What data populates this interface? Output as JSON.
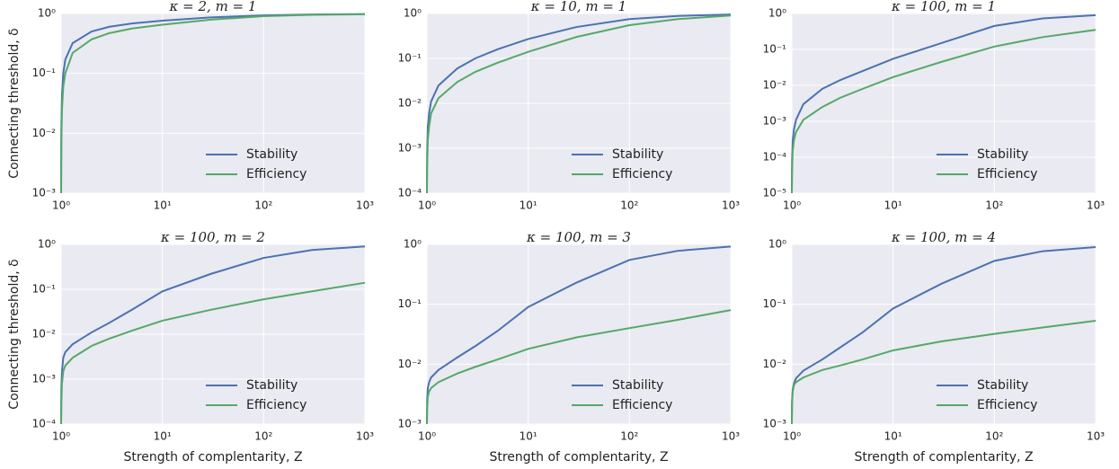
{
  "chart_data": [
    {
      "type": "line",
      "title": "κ = 2, m = 1",
      "ylabel": "Connecting threshold, δ",
      "x": [
        1,
        1.005,
        1.02,
        1.05,
        1.1,
        1.3,
        2,
        3,
        5,
        10,
        30,
        100,
        300,
        1000
      ],
      "series": [
        {
          "name": "Stability",
          "color": "#4c72b0",
          "values": [
            0.001,
            0.012,
            0.045,
            0.1,
            0.17,
            0.32,
            0.5,
            0.6,
            0.68,
            0.76,
            0.86,
            0.93,
            0.96,
            0.98
          ]
        },
        {
          "name": "Efficiency",
          "color": "#55a868",
          "values": [
            0.001,
            0.007,
            0.025,
            0.06,
            0.1,
            0.22,
            0.37,
            0.47,
            0.56,
            0.65,
            0.79,
            0.9,
            0.95,
            0.97
          ]
        }
      ],
      "xlim": [
        1,
        1000
      ],
      "xticks": [
        {
          "value": 1,
          "label": "10⁰"
        },
        {
          "value": 10,
          "label": "10¹"
        },
        {
          "value": 100,
          "label": "10²"
        },
        {
          "value": 1000,
          "label": "10³"
        }
      ],
      "ylim": [
        0.001,
        1
      ],
      "yticks": [
        {
          "value": 0.001,
          "label": "10⁻³"
        },
        {
          "value": 0.01,
          "label": "10⁻²"
        },
        {
          "value": 0.1,
          "label": "10⁻¹"
        },
        {
          "value": 1,
          "label": "10⁰"
        }
      ],
      "xscale": "log",
      "yscale": "log",
      "grid": true,
      "legend": "lower right"
    },
    {
      "type": "line",
      "title": "κ = 10, m = 1",
      "x": [
        1,
        1.005,
        1.02,
        1.05,
        1.1,
        1.3,
        2,
        3,
        5,
        10,
        30,
        100,
        300,
        1000
      ],
      "series": [
        {
          "name": "Stability",
          "color": "#4c72b0",
          "values": [
            0.0001,
            0.0008,
            0.003,
            0.006,
            0.011,
            0.025,
            0.06,
            0.1,
            0.16,
            0.27,
            0.5,
            0.75,
            0.88,
            0.95
          ]
        },
        {
          "name": "Efficiency",
          "color": "#55a868",
          "values": [
            0.0001,
            0.0004,
            0.0015,
            0.003,
            0.006,
            0.013,
            0.03,
            0.05,
            0.08,
            0.14,
            0.3,
            0.55,
            0.75,
            0.9
          ]
        }
      ],
      "xlim": [
        1,
        1000
      ],
      "xticks": [
        {
          "value": 1,
          "label": "10⁰"
        },
        {
          "value": 10,
          "label": "10¹"
        },
        {
          "value": 100,
          "label": "10²"
        },
        {
          "value": 1000,
          "label": "10³"
        }
      ],
      "ylim": [
        0.0001,
        1
      ],
      "yticks": [
        {
          "value": 0.0001,
          "label": "10⁻⁴"
        },
        {
          "value": 0.001,
          "label": "10⁻³"
        },
        {
          "value": 0.01,
          "label": "10⁻²"
        },
        {
          "value": 0.1,
          "label": "10⁻¹"
        },
        {
          "value": 1,
          "label": "10⁰"
        }
      ],
      "xscale": "log",
      "yscale": "log",
      "grid": true,
      "legend": "lower right"
    },
    {
      "type": "line",
      "title": "κ = 100, m = 1",
      "x": [
        1,
        1.005,
        1.02,
        1.05,
        1.1,
        1.3,
        2,
        3,
        5,
        10,
        30,
        100,
        300,
        1000
      ],
      "series": [
        {
          "name": "Stability",
          "color": "#4c72b0",
          "values": [
            1e-05,
            8e-05,
            0.0003,
            0.0006,
            0.0011,
            0.003,
            0.008,
            0.014,
            0.025,
            0.055,
            0.15,
            0.45,
            0.73,
            0.9
          ]
        },
        {
          "name": "Efficiency",
          "color": "#55a868",
          "values": [
            1e-05,
            4e-05,
            0.00015,
            0.0003,
            0.0005,
            0.0011,
            0.0025,
            0.0045,
            0.008,
            0.017,
            0.045,
            0.12,
            0.22,
            0.35
          ]
        }
      ],
      "xlim": [
        1,
        1000
      ],
      "xticks": [
        {
          "value": 1,
          "label": "10⁰"
        },
        {
          "value": 10,
          "label": "10¹"
        },
        {
          "value": 100,
          "label": "10²"
        },
        {
          "value": 1000,
          "label": "10³"
        }
      ],
      "ylim": [
        1e-05,
        1
      ],
      "yticks": [
        {
          "value": 1e-05,
          "label": "10⁻⁵"
        },
        {
          "value": 0.0001,
          "label": "10⁻⁴"
        },
        {
          "value": 0.001,
          "label": "10⁻³"
        },
        {
          "value": 0.01,
          "label": "10⁻²"
        },
        {
          "value": 0.1,
          "label": "10⁻¹"
        },
        {
          "value": 1,
          "label": "10⁰"
        }
      ],
      "xscale": "log",
      "yscale": "log",
      "grid": true,
      "legend": "lower right"
    },
    {
      "type": "line",
      "title": "κ = 100, m = 2",
      "ylabel": "Connecting threshold, δ",
      "xlabel": "Strength of complentarity, Z",
      "x": [
        1,
        1.005,
        1.02,
        1.05,
        1.1,
        1.3,
        2,
        3,
        5,
        10,
        30,
        100,
        300,
        1000
      ],
      "series": [
        {
          "name": "Stability",
          "color": "#4c72b0",
          "values": [
            0.0001,
            0.0006,
            0.0015,
            0.003,
            0.004,
            0.006,
            0.011,
            0.018,
            0.035,
            0.09,
            0.22,
            0.5,
            0.75,
            0.9
          ]
        },
        {
          "name": "Efficiency",
          "color": "#55a868",
          "values": [
            0.0001,
            0.0003,
            0.0008,
            0.0015,
            0.002,
            0.003,
            0.0055,
            0.008,
            0.012,
            0.02,
            0.035,
            0.06,
            0.09,
            0.14
          ]
        }
      ],
      "xlim": [
        1,
        1000
      ],
      "xticks": [
        {
          "value": 1,
          "label": "10⁰"
        },
        {
          "value": 10,
          "label": "10¹"
        },
        {
          "value": 100,
          "label": "10²"
        },
        {
          "value": 1000,
          "label": "10³"
        }
      ],
      "ylim": [
        0.0001,
        1
      ],
      "yticks": [
        {
          "value": 0.0001,
          "label": "10⁻⁴"
        },
        {
          "value": 0.001,
          "label": "10⁻³"
        },
        {
          "value": 0.01,
          "label": "10⁻²"
        },
        {
          "value": 0.1,
          "label": "10⁻¹"
        },
        {
          "value": 1,
          "label": "10⁰"
        }
      ],
      "xscale": "log",
      "yscale": "log",
      "grid": true,
      "legend": "lower right"
    },
    {
      "type": "line",
      "title": "κ = 100, m = 3",
      "xlabel": "Strength of complentarity, Z",
      "x": [
        1,
        1.005,
        1.02,
        1.05,
        1.1,
        1.3,
        2,
        3,
        5,
        10,
        30,
        100,
        300,
        1000
      ],
      "series": [
        {
          "name": "Stability",
          "color": "#4c72b0",
          "values": [
            0.001,
            0.0025,
            0.004,
            0.005,
            0.006,
            0.008,
            0.013,
            0.02,
            0.036,
            0.09,
            0.23,
            0.55,
            0.78,
            0.92
          ]
        },
        {
          "name": "Efficiency",
          "color": "#55a868",
          "values": [
            0.001,
            0.0018,
            0.0028,
            0.0035,
            0.004,
            0.005,
            0.007,
            0.009,
            0.012,
            0.018,
            0.028,
            0.04,
            0.055,
            0.08
          ]
        }
      ],
      "xlim": [
        1,
        1000
      ],
      "xticks": [
        {
          "value": 1,
          "label": "10⁰"
        },
        {
          "value": 10,
          "label": "10¹"
        },
        {
          "value": 100,
          "label": "10²"
        },
        {
          "value": 1000,
          "label": "10³"
        }
      ],
      "ylim": [
        0.001,
        1
      ],
      "yticks": [
        {
          "value": 0.001,
          "label": "10⁻³"
        },
        {
          "value": 0.01,
          "label": "10⁻²"
        },
        {
          "value": 0.1,
          "label": "10⁻¹"
        },
        {
          "value": 1,
          "label": "10⁰"
        }
      ],
      "xscale": "log",
      "yscale": "log",
      "grid": true,
      "legend": "lower right"
    },
    {
      "type": "line",
      "title": "κ = 100, m = 4",
      "xlabel": "Strength of complentarity, Z",
      "x": [
        1,
        1.005,
        1.02,
        1.05,
        1.1,
        1.3,
        2,
        3,
        5,
        10,
        30,
        100,
        300,
        1000
      ],
      "series": [
        {
          "name": "Stability",
          "color": "#4c72b0",
          "values": [
            0.001,
            0.0025,
            0.0038,
            0.0048,
            0.0058,
            0.0078,
            0.012,
            0.019,
            0.034,
            0.085,
            0.22,
            0.53,
            0.77,
            0.9
          ]
        },
        {
          "name": "Efficiency",
          "color": "#55a868",
          "values": [
            0.001,
            0.0022,
            0.0035,
            0.0045,
            0.005,
            0.006,
            0.008,
            0.0095,
            0.012,
            0.017,
            0.024,
            0.032,
            0.041,
            0.053
          ]
        }
      ],
      "xlim": [
        1,
        1000
      ],
      "xticks": [
        {
          "value": 1,
          "label": "10⁰"
        },
        {
          "value": 10,
          "label": "10¹"
        },
        {
          "value": 100,
          "label": "10²"
        },
        {
          "value": 1000,
          "label": "10³"
        }
      ],
      "ylim": [
        0.001,
        1
      ],
      "yticks": [
        {
          "value": 0.001,
          "label": "10⁻³"
        },
        {
          "value": 0.01,
          "label": "10⁻²"
        },
        {
          "value": 0.1,
          "label": "10⁻¹"
        },
        {
          "value": 1,
          "label": "10⁰"
        }
      ],
      "xscale": "log",
      "yscale": "log",
      "grid": true,
      "legend": "lower right"
    }
  ]
}
